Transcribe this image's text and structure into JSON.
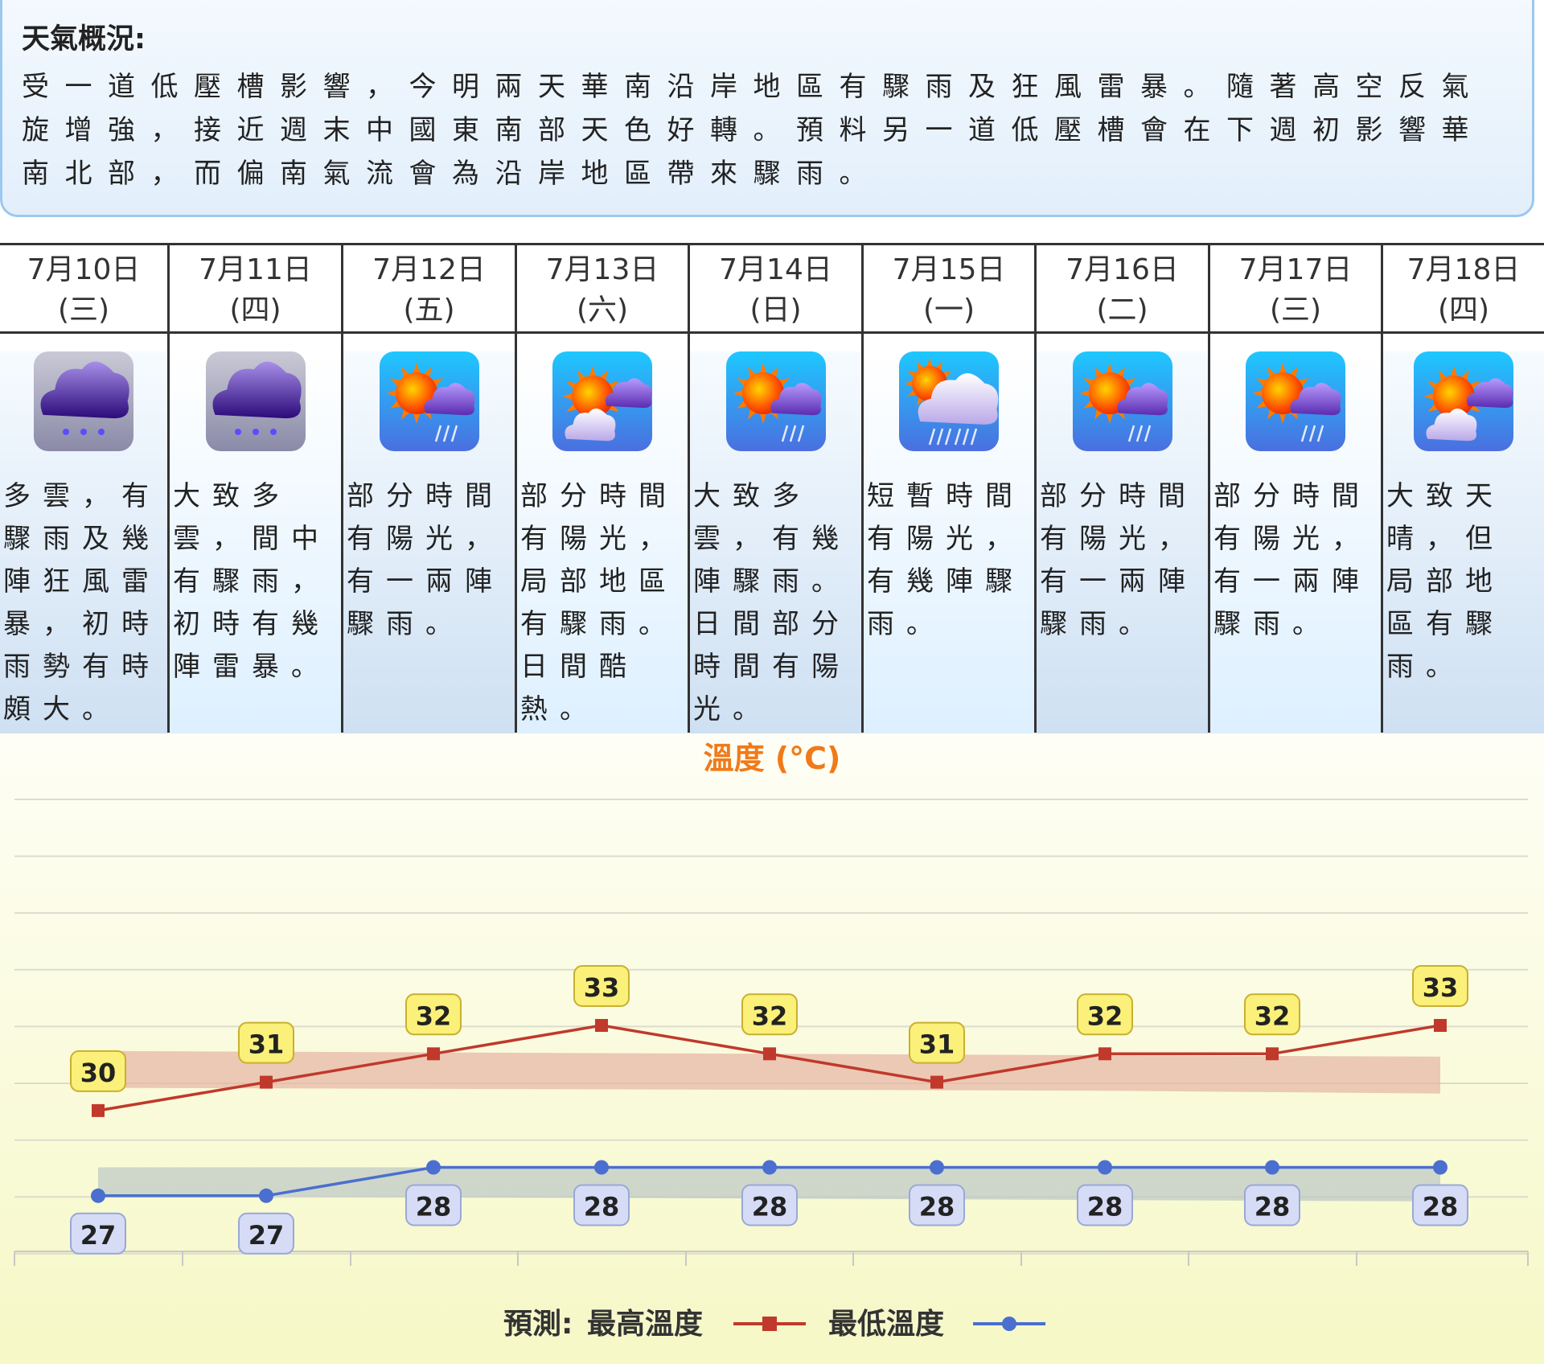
{
  "summary": {
    "title": "天氣概況:",
    "text": "受一道低壓槽影響，今明兩天華南沿岸地區有驟雨及狂風雷暴。隨著高空反氣旋增強，接近週末中國東南部天色好轉。預料另一道低壓槽會在下週初影響華南北部，而偏南氣流會為沿岸地區帶來驟雨。"
  },
  "days": [
    {
      "date": "7月10日",
      "weekday": "(三)",
      "icon": "heavy-rain-icon",
      "desc": "多雲，有驟雨及幾陣狂風雷暴，初時雨勢有時頗大。",
      "tmax": 30,
      "tmin": 27
    },
    {
      "date": "7月11日",
      "weekday": "(四)",
      "icon": "heavy-rain-icon",
      "desc": "大致多雲，間中有驟雨，初時有幾陣雷暴。",
      "tmax": 31,
      "tmin": 27
    },
    {
      "date": "7月12日",
      "weekday": "(五)",
      "icon": "sunny-periods-showers-icon",
      "desc": "部分時間有陽光，有一兩陣驟雨。",
      "tmax": 32,
      "tmin": 28
    },
    {
      "date": "7月13日",
      "weekday": "(六)",
      "icon": "sunny-periods-icon",
      "desc": "部分時間有陽光，局部地區有驟雨。日間酷熱。",
      "tmax": 33,
      "tmin": 28
    },
    {
      "date": "7月14日",
      "weekday": "(日)",
      "icon": "sunny-periods-showers-icon",
      "desc": "大致多雲，有幾陣驟雨。日間部分時間有陽光。",
      "tmax": 32,
      "tmin": 28
    },
    {
      "date": "7月15日",
      "weekday": "(一)",
      "icon": "sunny-intervals-showers-icon",
      "desc": "短暫時間有陽光，有幾陣驟雨。",
      "tmax": 31,
      "tmin": 28
    },
    {
      "date": "7月16日",
      "weekday": "(二)",
      "icon": "sunny-periods-showers-icon",
      "desc": "部分時間有陽光，有一兩陣驟雨。",
      "tmax": 32,
      "tmin": 28
    },
    {
      "date": "7月17日",
      "weekday": "(三)",
      "icon": "sunny-periods-showers-icon",
      "desc": "部分時間有陽光，有一兩陣驟雨。",
      "tmax": 32,
      "tmin": 28
    },
    {
      "date": "7月18日",
      "weekday": "(四)",
      "icon": "sunny-periods-icon",
      "desc": "大致天晴，但局部地區有驟雨。",
      "tmax": 33,
      "tmin": 28
    }
  ],
  "chart_data": {
    "type": "line",
    "title": "溫度 (°C)",
    "categories": [
      "7月10日",
      "7月11日",
      "7月12日",
      "7月13日",
      "7月14日",
      "7月15日",
      "7月16日",
      "7月17日",
      "7月18日"
    ],
    "series": [
      {
        "name": "最高溫度",
        "values": [
          30,
          31,
          32,
          33,
          32,
          31,
          32,
          32,
          33
        ],
        "color": "#c0392b"
      },
      {
        "name": "最低溫度",
        "values": [
          27,
          27,
          28,
          28,
          28,
          28,
          28,
          28,
          28
        ],
        "color": "#4a6fd0"
      }
    ],
    "legend_prefix": "預測:",
    "legend_position": "bottom-center",
    "grid": true,
    "colors": {
      "max_band": "#e6b4a2",
      "min_band": "#bcc8c4",
      "label_bg_max": "#fbf07a",
      "label_bg_min": "#d6dcf6",
      "title": "#f07a1a"
    }
  }
}
